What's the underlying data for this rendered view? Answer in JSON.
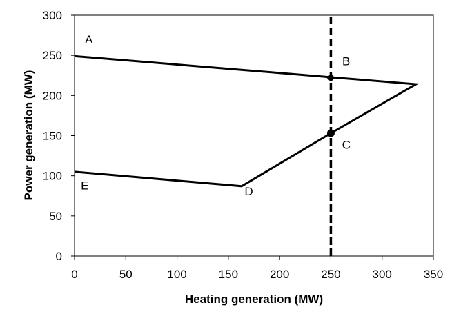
{
  "chart_data": {
    "type": "line",
    "xlabel": "Heating generation (MW)",
    "ylabel": "Power generation (MW)",
    "xlim": [
      0,
      350
    ],
    "ylim": [
      0,
      300
    ],
    "x_ticks": [
      0,
      50,
      100,
      150,
      200,
      250,
      300,
      350
    ],
    "y_ticks": [
      0,
      50,
      100,
      150,
      200,
      250,
      300
    ],
    "grid": false,
    "series": [
      {
        "style": "solid",
        "points": [
          {
            "x": 0,
            "y": 249
          },
          {
            "x": 333,
            "y": 214
          },
          {
            "x": 250,
            "y": 153
          },
          {
            "x": 163,
            "y": 87
          },
          {
            "x": 0,
            "y": 105
          }
        ]
      },
      {
        "style": "dashed",
        "points": [
          {
            "x": 250,
            "y": 0
          },
          {
            "x": 250,
            "y": 300
          }
        ]
      }
    ],
    "markers": [
      {
        "x": 250,
        "y": 222,
        "shape": "diamond"
      },
      {
        "x": 250,
        "y": 153,
        "shape": "circle"
      }
    ],
    "point_labels": [
      {
        "text": "A",
        "x": 14,
        "y": 270
      },
      {
        "text": "B",
        "x": 265,
        "y": 243
      },
      {
        "text": "C",
        "x": 265,
        "y": 139
      },
      {
        "text": "D",
        "x": 170,
        "y": 81
      },
      {
        "text": "E",
        "x": 10,
        "y": 88
      }
    ]
  }
}
